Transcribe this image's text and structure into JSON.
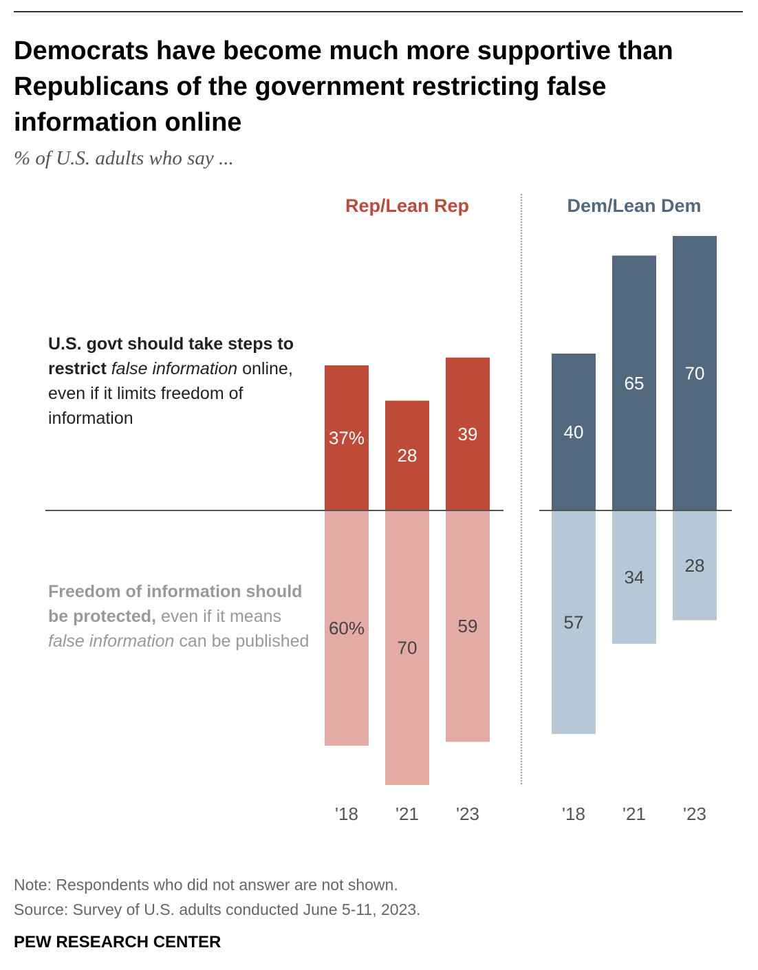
{
  "header": {
    "title": "Democrats have become much more supportive than Republicans of the government restricting false information online",
    "subtitle": "% of U.S. adults who say ..."
  },
  "labels": {
    "upper": {
      "p1": "U.S. govt should take steps to restrict",
      "p2": "false information",
      "p3": "online, even if it limits freedom of information"
    },
    "lower": {
      "p1": "Freedom of information should be protected,",
      "p2": "even if it means",
      "p3": "false information",
      "p4": "can be published"
    }
  },
  "footer": {
    "note": "Note: Respondents who did not answer are not shown.",
    "source": "Source: Survey of U.S. adults conducted June 5-11, 2023.",
    "brand": "PEW RESEARCH CENTER"
  },
  "colors": {
    "rep_upper": "#bf4a37",
    "rep_lower": "#e4aaa4",
    "dem_upper": "#51687f",
    "dem_lower": "#b5c8d6",
    "rep_label": "#bf4a37",
    "dem_label": "#51687f",
    "axis": "#555555"
  },
  "chart_data": {
    "type": "bar",
    "layout": "diverging",
    "categories": [
      "'18",
      "'21",
      "'23"
    ],
    "groups": [
      {
        "name": "Rep/Lean Rep",
        "series": [
          {
            "name": "U.S. govt should take steps to restrict false information online, even if it limits freedom of information",
            "values": [
              37,
              28,
              39
            ],
            "labels": [
              "37%",
              "28",
              "39"
            ]
          },
          {
            "name": "Freedom of information should be protected, even if it means false information can be published",
            "values": [
              60,
              70,
              59
            ],
            "labels": [
              "60%",
              "70",
              "59"
            ]
          }
        ]
      },
      {
        "name": "Dem/Lean Dem",
        "series": [
          {
            "name": "U.S. govt should take steps to restrict false information online, even if it limits freedom of information",
            "values": [
              40,
              65,
              70
            ],
            "labels": [
              "40",
              "65",
              "70"
            ]
          },
          {
            "name": "Freedom of information should be protected, even if it means false information can be published",
            "values": [
              57,
              34,
              28
            ],
            "labels": [
              "57",
              "34",
              "28"
            ]
          }
        ]
      }
    ],
    "grid": false,
    "legend": "none"
  }
}
